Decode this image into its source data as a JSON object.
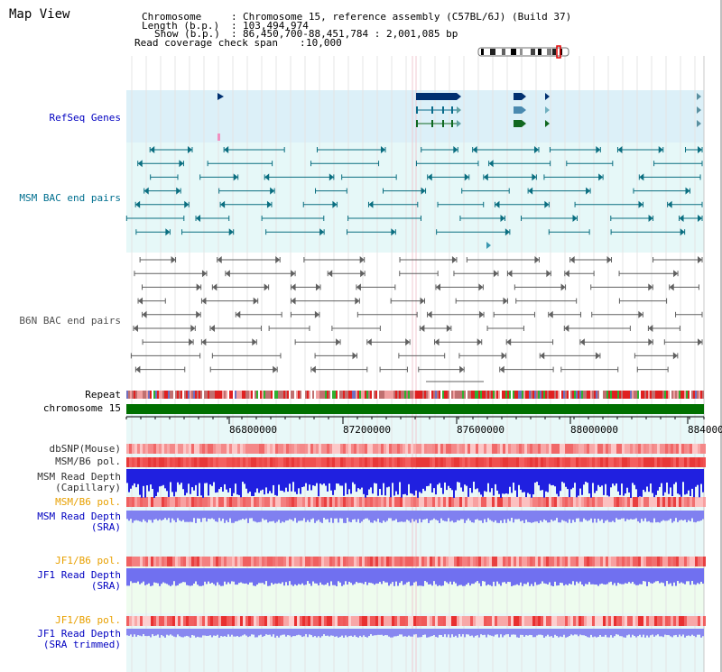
{
  "page_title": "Map View",
  "header": {
    "chromosome_label": "Chromosome",
    "chromosome_value": "Chromosome 15, reference assembly (C57BL/6J) (Build 37)",
    "length_label": "Length (b.p.)",
    "length_value": "103,494,974",
    "show_label": "Show (b.p.)",
    "show_value": "86,450,700-88,451,784 : 2,001,085 bp",
    "coverage_label": "Read coverage check span",
    "coverage_value": "10,000"
  },
  "tracks": {
    "refseq": "RefSeq Genes",
    "msm_bac": "MSM BAC end pairs",
    "b6n_bac": "B6N BAC end pairs",
    "repeat": "Repeat",
    "chrom": "chromosome 15",
    "dbsnp": "dbSNP(Mouse)",
    "msm_pol_cap": "MSM/B6 pol.",
    "msm_depth_cap_1": "MSM Read Depth",
    "msm_depth_cap_2": "(Capillary)",
    "msm_pol_sra": "MSM/B6 pol.",
    "msm_depth_sra_1": "MSM Read Depth",
    "msm_depth_sra_2": "(SRA)",
    "jf1_pol": "JF1/B6 pol.",
    "jf1_depth_1": "JF1 Read Depth",
    "jf1_depth_2": "(SRA)",
    "jf1_pol_trim": "JF1/B6 pol.",
    "jf1_trim_1": "JF1 Read Depth",
    "jf1_trim_2": "(SRA trimmed)"
  },
  "axis_ticks": [
    "86800000",
    "87200000",
    "87600000",
    "88000000",
    "884000"
  ],
  "colors": {
    "refseq_bg": "#dcf0f8",
    "msm_bg": "#e6f8f8",
    "chrom_bar": "#007000",
    "label_blue": "#0000c0",
    "label_teal": "#006f8f",
    "label_orange": "#e8a000",
    "gene_dark": "#003070"
  }
}
